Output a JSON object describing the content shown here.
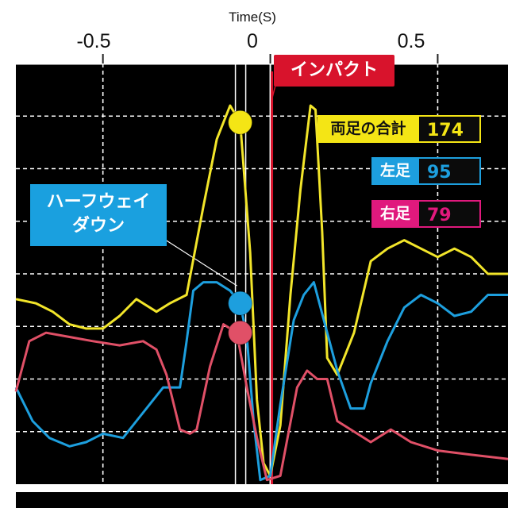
{
  "chart_data": {
    "type": "line",
    "title": "",
    "xlabel": "Time(S)",
    "ylabel": "",
    "x_ticks": [
      "-0.5",
      "0",
      "0.5"
    ],
    "x_tick_values": [
      -0.5,
      0,
      0.5
    ],
    "xlim": [
      -0.76,
      0.71
    ],
    "ylim": [
      0,
      100
    ],
    "grid": true,
    "series": [
      {
        "name": "両足の合計",
        "color": "#f2e52a",
        "points": [
          [
            -0.76,
            44
          ],
          [
            -0.7,
            43
          ],
          [
            -0.65,
            41
          ],
          [
            -0.6,
            38
          ],
          [
            -0.55,
            37
          ],
          [
            -0.5,
            37
          ],
          [
            -0.45,
            40
          ],
          [
            -0.4,
            44
          ],
          [
            -0.34,
            41
          ],
          [
            -0.3,
            43
          ],
          [
            -0.25,
            45
          ],
          [
            -0.2,
            66
          ],
          [
            -0.16,
            82
          ],
          [
            -0.12,
            90
          ],
          [
            -0.09,
            86
          ],
          [
            -0.06,
            55
          ],
          [
            -0.04,
            20
          ],
          [
            -0.02,
            5
          ],
          [
            0.0,
            2
          ],
          [
            0.03,
            14
          ],
          [
            0.06,
            45
          ],
          [
            0.09,
            70
          ],
          [
            0.12,
            90
          ],
          [
            0.135,
            89
          ],
          [
            0.155,
            60
          ],
          [
            0.17,
            30
          ],
          [
            0.2,
            26
          ],
          [
            0.25,
            36
          ],
          [
            0.3,
            53
          ],
          [
            0.35,
            56
          ],
          [
            0.4,
            58
          ],
          [
            0.45,
            56
          ],
          [
            0.5,
            54
          ],
          [
            0.55,
            56
          ],
          [
            0.6,
            54
          ],
          [
            0.65,
            50
          ],
          [
            0.71,
            50
          ]
        ]
      },
      {
        "name": "左足",
        "color": "#1d9fde",
        "points": [
          [
            -0.76,
            23
          ],
          [
            -0.71,
            15
          ],
          [
            -0.66,
            11
          ],
          [
            -0.6,
            9
          ],
          [
            -0.55,
            10
          ],
          [
            -0.5,
            12
          ],
          [
            -0.44,
            11
          ],
          [
            -0.4,
            15
          ],
          [
            -0.36,
            19
          ],
          [
            -0.32,
            23
          ],
          [
            -0.27,
            23
          ],
          [
            -0.25,
            34
          ],
          [
            -0.23,
            46
          ],
          [
            -0.2,
            48
          ],
          [
            -0.16,
            48
          ],
          [
            -0.12,
            46
          ],
          [
            -0.09,
            43
          ],
          [
            -0.07,
            35
          ],
          [
            -0.05,
            15
          ],
          [
            -0.03,
            1
          ],
          [
            0.0,
            2
          ],
          [
            0.03,
            19
          ],
          [
            0.07,
            39
          ],
          [
            0.1,
            45
          ],
          [
            0.13,
            48
          ],
          [
            0.16,
            39
          ],
          [
            0.2,
            27
          ],
          [
            0.24,
            18
          ],
          [
            0.28,
            18
          ],
          [
            0.3,
            24
          ],
          [
            0.35,
            34
          ],
          [
            0.4,
            42
          ],
          [
            0.45,
            45
          ],
          [
            0.5,
            43
          ],
          [
            0.55,
            40
          ],
          [
            0.6,
            41
          ],
          [
            0.65,
            45
          ],
          [
            0.71,
            45
          ]
        ]
      },
      {
        "name": "右足",
        "color": "#e05067",
        "points": [
          [
            -0.76,
            22
          ],
          [
            -0.72,
            34
          ],
          [
            -0.67,
            36
          ],
          [
            -0.6,
            35
          ],
          [
            -0.53,
            34
          ],
          [
            -0.45,
            33
          ],
          [
            -0.38,
            34
          ],
          [
            -0.34,
            32
          ],
          [
            -0.31,
            26
          ],
          [
            -0.27,
            13
          ],
          [
            -0.24,
            12
          ],
          [
            -0.22,
            13
          ],
          [
            -0.18,
            28
          ],
          [
            -0.14,
            38
          ],
          [
            -0.1,
            36
          ],
          [
            -0.07,
            23
          ],
          [
            -0.04,
            11
          ],
          [
            -0.01,
            1
          ],
          [
            0.03,
            2
          ],
          [
            0.08,
            23
          ],
          [
            0.11,
            27
          ],
          [
            0.14,
            25
          ],
          [
            0.17,
            25
          ],
          [
            0.2,
            15
          ],
          [
            0.24,
            13
          ],
          [
            0.3,
            10
          ],
          [
            0.36,
            13
          ],
          [
            0.42,
            10
          ],
          [
            0.5,
            8
          ],
          [
            0.6,
            7
          ],
          [
            0.71,
            6
          ]
        ]
      }
    ],
    "markers": [
      {
        "series": "両足の合計",
        "x": -0.09,
        "y": 86
      },
      {
        "series": "左足",
        "x": -0.09,
        "y": 43
      },
      {
        "series": "右足",
        "x": -0.09,
        "y": 36
      }
    ],
    "vertical_lines": [
      {
        "label": "ハーフウェイダウン",
        "x": -0.09
      },
      {
        "label": "インパクト",
        "x": 0.0
      }
    ]
  },
  "annotations": {
    "impact_label": "インパクト",
    "halfway_line1": "ハーフウェイ",
    "halfway_line2": "ダウン"
  },
  "legend": [
    {
      "name": "両足の合計",
      "value": "174",
      "name_bg": "#f4e515",
      "name_color": "#111111",
      "value_color": "#f4e515"
    },
    {
      "name": "左足",
      "value": "95",
      "name_bg": "#1d9fde",
      "name_color": "#ffffff",
      "value_color": "#1d9fde"
    },
    {
      "name": "右足",
      "value": "79",
      "name_bg": "#e0197d",
      "name_color": "#ffffff",
      "value_color": "#e0197d"
    }
  ],
  "colors": {
    "background": "#000000",
    "grid": "#ffffff",
    "impact_line": "#d8132c",
    "halfway_line": "#ffffff"
  }
}
